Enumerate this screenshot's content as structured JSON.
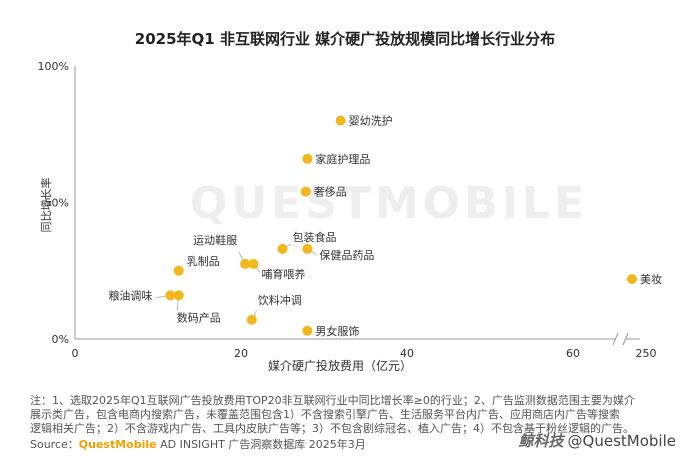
{
  "chart_data": {
    "type": "scatter",
    "title": "2025年Q1 非互联网行业 媒介硬广投放规模同比增长行业分布",
    "xlabel": "媒介硬广投放费用（亿元）",
    "ylabel": "同比增长率",
    "x_ticks": [
      "0",
      "20",
      "40",
      "60",
      "250"
    ],
    "y_ticks": [
      "0%",
      "50%",
      "100%"
    ],
    "x_break": true,
    "ylim": [
      0,
      1.0
    ],
    "watermark": "QUESTMOBILE",
    "color": "#f2b71b",
    "points": [
      {
        "label": "婴幼洗护",
        "x": 32.0,
        "y": 0.8
      },
      {
        "label": "家庭护理品",
        "x": 28.0,
        "y": 0.66
      },
      {
        "label": "奢侈品",
        "x": 27.8,
        "y": 0.54
      },
      {
        "label": "包装食品",
        "x": 25.0,
        "y": 0.33
      },
      {
        "label": "保健品药品",
        "x": 28.0,
        "y": 0.33
      },
      {
        "label": "运动鞋服",
        "x": 20.5,
        "y": 0.275
      },
      {
        "label": "哺育喂养",
        "x": 21.5,
        "y": 0.275
      },
      {
        "label": "乳制品",
        "x": 12.5,
        "y": 0.25
      },
      {
        "label": "粮油调味",
        "x": 11.5,
        "y": 0.16
      },
      {
        "label": "数码产品",
        "x": 12.5,
        "y": 0.16
      },
      {
        "label": "饮料冲调",
        "x": 21.3,
        "y": 0.07
      },
      {
        "label": "男女服饰",
        "x": 28.0,
        "y": 0.03
      },
      {
        "label": "美妆",
        "x": 250,
        "y": 0.22
      }
    ]
  },
  "notes": [
    "注：1、选取2025年Q1互联网广告投放费用TOP20非互联网行业中同比增长率≥0的行业；2、广告监测数据范围主要为媒介",
    "展示类广告，包含电商内搜索广告，未覆盖范围包含1）不含搜索引擎广告、生活服务平台内广告、应用商店内广告等搜索",
    "逻辑相关广告；2）不含游戏内广告、工具内皮肤广告等；3）不包含剧综冠名、植入广告；4）不包含基于粉丝逻辑的广告。"
  ],
  "source": {
    "prefix": "Source：",
    "brand": "QuestMobile",
    "rest": " AD INSIGHT 广告洞察数据库 2025年3月"
  },
  "wm_brand": "鲸科技",
  "wm_text": "@QuestMobile"
}
